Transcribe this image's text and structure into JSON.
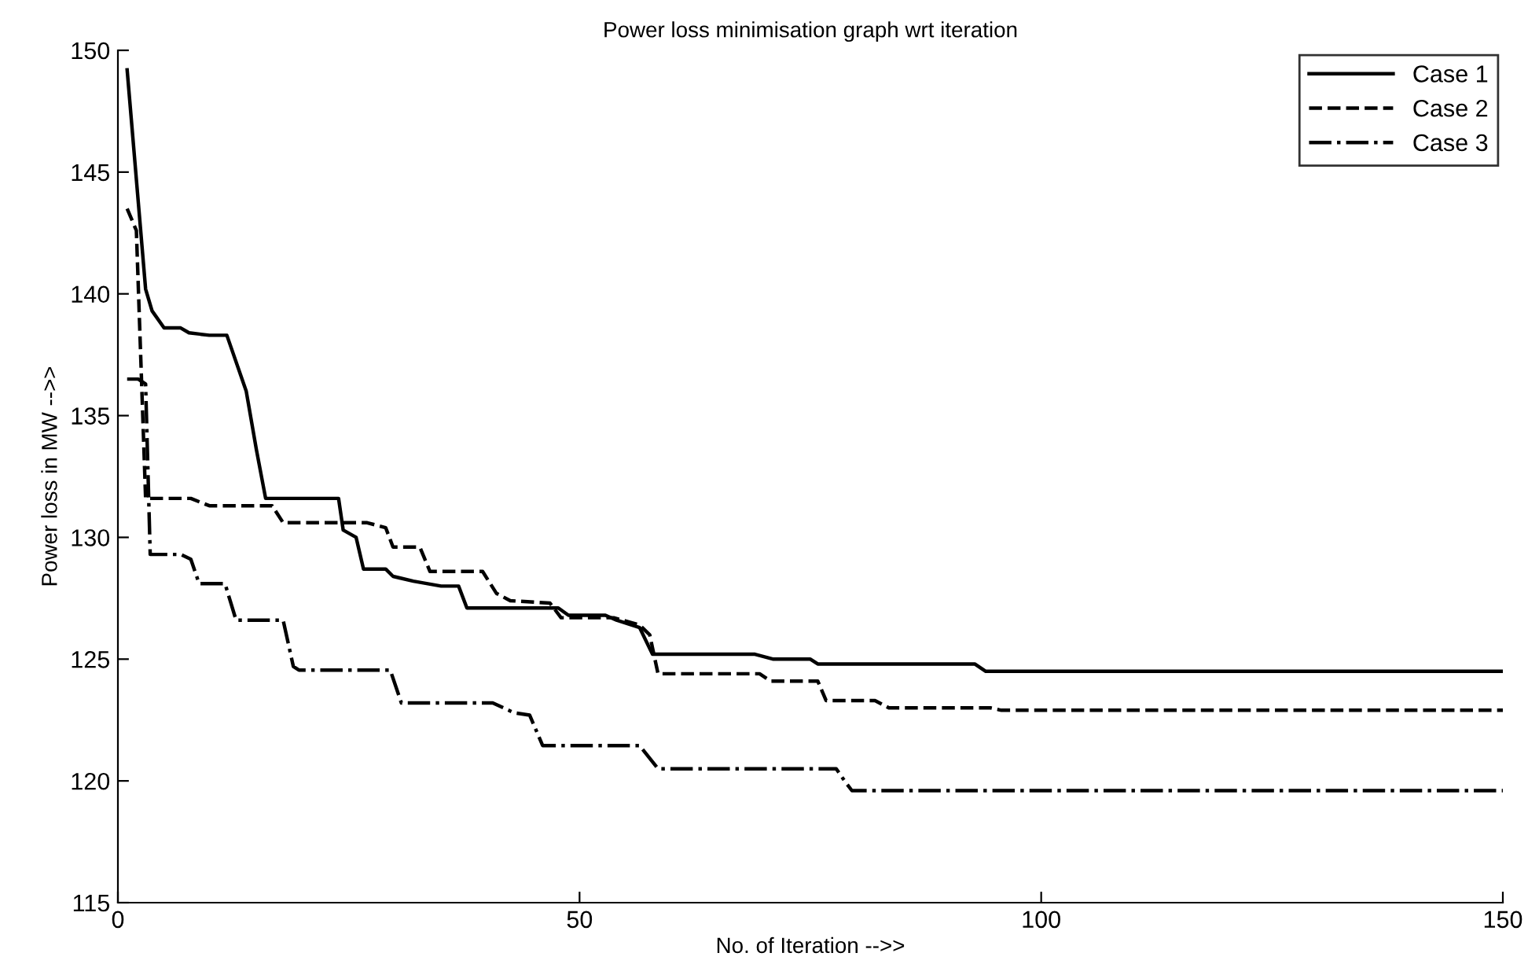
{
  "chart_data": {
    "type": "line",
    "title": "Power loss minimisation graph wrt iteration",
    "xlabel": "No. of Iteration -->>",
    "ylabel": "Power loss in MW -->>",
    "xlim": [
      0,
      150
    ],
    "ylim": [
      115,
      150
    ],
    "xticks": [
      0,
      50,
      100,
      150
    ],
    "yticks": [
      115,
      120,
      125,
      130,
      135,
      140,
      145,
      150
    ],
    "grid": false,
    "legend": "top right",
    "series": [
      {
        "name": "Case 1",
        "color": "#000000",
        "line_style": "solid",
        "x": [
          1,
          3,
          3.7,
          5,
          6.8,
          7.7,
          9.9,
          11.8,
          13.9,
          15,
          16,
          23.9,
          24.4,
          25.8,
          26.6,
          29,
          29.8,
          32,
          35,
          36.9,
          37.8,
          47.7,
          48.8,
          52.8,
          54,
          56.5,
          57.9,
          69,
          71,
          75,
          75.8,
          92.8,
          94,
          150
        ],
        "values": [
          149.2,
          140.2,
          139.3,
          138.6,
          138.6,
          138.4,
          138.3,
          138.3,
          136.0,
          133.6,
          131.6,
          131.6,
          130.3,
          130.0,
          128.7,
          128.7,
          128.4,
          128.2,
          128.0,
          128.0,
          127.1,
          127.1,
          126.8,
          126.8,
          126.6,
          126.3,
          125.2,
          125.2,
          125.0,
          125.0,
          124.8,
          124.8,
          124.5,
          124.5
        ]
      },
      {
        "name": "Case 2",
        "color": "#000000",
        "line_style": "dashed",
        "x": [
          1,
          2,
          3,
          7.9,
          9.9,
          16.7,
          17.9,
          27,
          29,
          29.8,
          32.7,
          33.8,
          39.5,
          41,
          42.5,
          46.8,
          48,
          53.7,
          56.5,
          57.6,
          58.5,
          69.5,
          70.7,
          75.8,
          76.7,
          82,
          83.5,
          94.5,
          95.7,
          150
        ],
        "values": [
          143.5,
          142.6,
          131.6,
          131.6,
          131.3,
          131.3,
          130.6,
          130.6,
          130.4,
          129.6,
          129.6,
          128.6,
          128.6,
          127.7,
          127.4,
          127.3,
          126.7,
          126.7,
          126.4,
          126.0,
          124.4,
          124.4,
          124.1,
          124.1,
          123.3,
          123.3,
          123.0,
          123.0,
          122.9,
          122.9
        ]
      },
      {
        "name": "Case 3",
        "color": "#000000",
        "line_style": "dashdot",
        "x": [
          1,
          2.2,
          3,
          3.5,
          6.8,
          7.9,
          8.8,
          11.6,
          12.8,
          17.9,
          19,
          19.6,
          29.5,
          30.7,
          40.6,
          42.9,
          44.6,
          46,
          56.5,
          58.5,
          77.8,
          78.7,
          79.5,
          150
        ],
        "values": [
          136.5,
          136.5,
          136.3,
          129.3,
          129.3,
          129.1,
          128.1,
          128.1,
          126.6,
          126.6,
          124.7,
          124.55,
          124.55,
          123.2,
          123.2,
          122.8,
          122.7,
          121.45,
          121.45,
          120.5,
          120.5,
          120.0,
          119.6,
          119.6
        ]
      }
    ]
  }
}
